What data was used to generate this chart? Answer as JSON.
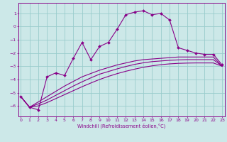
{
  "title": "",
  "xlabel": "Windchill (Refroidissement éolien,°C)",
  "background_color": "#cce8e8",
  "grid_color": "#99cccc",
  "line_color": "#880088",
  "x_ticks": [
    0,
    1,
    2,
    3,
    4,
    5,
    6,
    7,
    8,
    9,
    10,
    11,
    12,
    13,
    14,
    15,
    16,
    17,
    18,
    19,
    20,
    21,
    22,
    23
  ],
  "y_ticks": [
    -6,
    -5,
    -4,
    -3,
    -2,
    -1,
    0,
    1
  ],
  "ylim": [
    -6.8,
    1.8
  ],
  "xlim": [
    -0.3,
    23.3
  ],
  "main_line": {
    "x": [
      0,
      1,
      2,
      3,
      4,
      5,
      6,
      7,
      8,
      9,
      10,
      11,
      12,
      13,
      14,
      15,
      16,
      17,
      18,
      19,
      20,
      21,
      22,
      23
    ],
    "y": [
      -5.3,
      -6.1,
      -6.3,
      -3.8,
      -3.5,
      -3.7,
      -2.4,
      -1.2,
      -2.5,
      -1.5,
      -1.2,
      -0.2,
      0.9,
      1.1,
      1.2,
      0.9,
      1.0,
      0.5,
      -1.6,
      -1.8,
      -2.0,
      -2.1,
      -2.1,
      -2.9
    ]
  },
  "smooth_line1": {
    "x": [
      0,
      1,
      2,
      3,
      4,
      5,
      6,
      7,
      8,
      9,
      10,
      11,
      12,
      13,
      14,
      15,
      16,
      17,
      18,
      19,
      20,
      21,
      22,
      23
    ],
    "y": [
      -5.3,
      -6.1,
      -5.7,
      -5.3,
      -4.9,
      -4.5,
      -4.15,
      -3.8,
      -3.55,
      -3.3,
      -3.1,
      -2.9,
      -2.75,
      -2.6,
      -2.5,
      -2.45,
      -2.4,
      -2.35,
      -2.3,
      -2.3,
      -2.3,
      -2.3,
      -2.3,
      -3.0
    ]
  },
  "smooth_line2": {
    "x": [
      0,
      1,
      2,
      3,
      4,
      5,
      6,
      7,
      8,
      9,
      10,
      11,
      12,
      13,
      14,
      15,
      16,
      17,
      18,
      19,
      20,
      21,
      22,
      23
    ],
    "y": [
      -5.3,
      -6.1,
      -5.85,
      -5.55,
      -5.2,
      -4.85,
      -4.5,
      -4.18,
      -3.88,
      -3.6,
      -3.4,
      -3.2,
      -3.02,
      -2.86,
      -2.74,
      -2.65,
      -2.6,
      -2.55,
      -2.52,
      -2.5,
      -2.5,
      -2.5,
      -2.5,
      -3.0
    ]
  },
  "smooth_line3": {
    "x": [
      0,
      1,
      2,
      3,
      4,
      5,
      6,
      7,
      8,
      9,
      10,
      11,
      12,
      13,
      14,
      15,
      16,
      17,
      18,
      19,
      20,
      21,
      22,
      23
    ],
    "y": [
      -5.3,
      -6.1,
      -6.0,
      -5.75,
      -5.45,
      -5.15,
      -4.85,
      -4.55,
      -4.27,
      -4.0,
      -3.77,
      -3.56,
      -3.38,
      -3.22,
      -3.08,
      -2.97,
      -2.88,
      -2.82,
      -2.78,
      -2.76,
      -2.75,
      -2.75,
      -2.75,
      -3.0
    ]
  }
}
